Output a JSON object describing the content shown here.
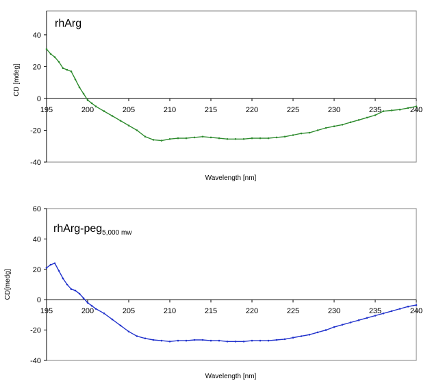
{
  "chart_data": [
    {
      "type": "line",
      "title": "rhArg",
      "title_sub": "",
      "xlabel": "Wavelength [nm]",
      "ylabel": "CD [mdeg]",
      "xlim": [
        195,
        240
      ],
      "ylim": [
        -40,
        55
      ],
      "yticks": [
        -40,
        -20,
        0,
        20,
        40
      ],
      "xticks": [
        195,
        200,
        205,
        210,
        215,
        220,
        225,
        230,
        235,
        240
      ],
      "grid": false,
      "color": "#2e8b2e",
      "series": [
        {
          "x": [
            195,
            195.5,
            196,
            196.5,
            197,
            197.5,
            198,
            198.5,
            199,
            199.5,
            200,
            200.5,
            201,
            202,
            203,
            204,
            205,
            206,
            207,
            208,
            209,
            210,
            211,
            212,
            213,
            214,
            215,
            216,
            217,
            218,
            219,
            220,
            221,
            222,
            223,
            224,
            225,
            226,
            227,
            228,
            229,
            230,
            231,
            232,
            233,
            234,
            235,
            236,
            237,
            238,
            239,
            240
          ],
          "y": [
            31,
            28,
            26,
            23,
            19,
            18,
            17,
            12,
            7,
            3,
            -1,
            -3,
            -5,
            -8,
            -11,
            -14,
            -17,
            -20,
            -24,
            -26,
            -26.5,
            -25.5,
            -25,
            -25,
            -24.5,
            -24,
            -24.5,
            -25,
            -25.5,
            -25.5,
            -25.5,
            -25,
            -25,
            -25,
            -24.5,
            -24,
            -23,
            -22,
            -21.5,
            -20,
            -18.5,
            -17.5,
            -16.5,
            -15,
            -13.5,
            -12,
            -10.5,
            -8,
            -7.5,
            -7,
            -6,
            -5
          ]
        }
      ]
    },
    {
      "type": "line",
      "title": "rhArg-peg",
      "title_sub": "5,000 mw",
      "xlabel": "Wavelength [nm]",
      "ylabel": "CD[medg]",
      "xlim": [
        195,
        240
      ],
      "ylim": [
        -40,
        60
      ],
      "yticks": [
        -40,
        -20,
        0,
        20,
        40,
        60
      ],
      "xticks": [
        195,
        200,
        205,
        210,
        215,
        220,
        225,
        230,
        235,
        240
      ],
      "grid": false,
      "color": "#2233cc",
      "series": [
        {
          "x": [
            195,
            195.5,
            196,
            196.5,
            197,
            197.5,
            198,
            198.5,
            199,
            199.5,
            200,
            200.5,
            201,
            202,
            203,
            204,
            205,
            206,
            207,
            208,
            209,
            210,
            211,
            212,
            213,
            214,
            215,
            216,
            217,
            218,
            219,
            220,
            221,
            222,
            223,
            224,
            225,
            226,
            227,
            228,
            229,
            230,
            231,
            232,
            233,
            234,
            235,
            236,
            237,
            238,
            239,
            240
          ],
          "y": [
            21,
            23,
            24,
            19,
            14,
            10,
            7,
            6,
            4,
            1,
            -2,
            -4,
            -6,
            -9,
            -13,
            -17,
            -21,
            -24,
            -25.5,
            -26.5,
            -27,
            -27.5,
            -27,
            -27,
            -26.5,
            -26.5,
            -27,
            -27,
            -27.5,
            -27.5,
            -27.5,
            -27,
            -27,
            -27,
            -26.5,
            -26,
            -25,
            -24,
            -23,
            -21.5,
            -20,
            -18,
            -16.5,
            -15,
            -13.5,
            -12,
            -10.5,
            -9,
            -7.5,
            -6,
            -4.5,
            -3.5
          ]
        }
      ]
    }
  ]
}
